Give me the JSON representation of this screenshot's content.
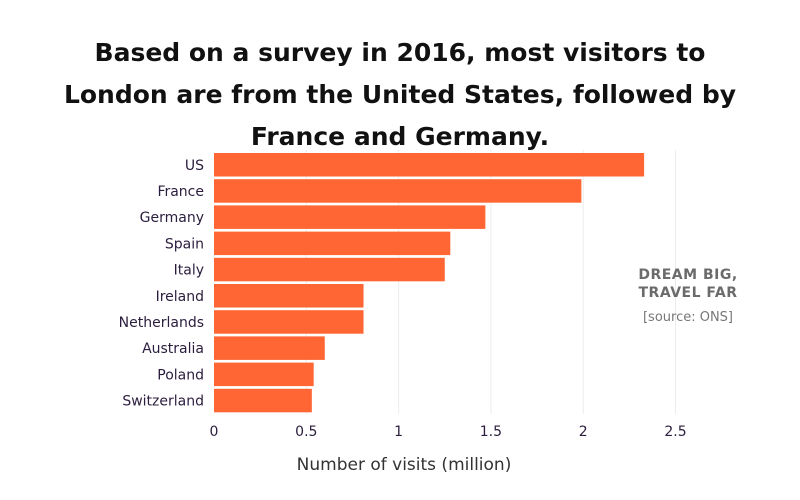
{
  "chart_data": {
    "type": "bar",
    "orientation": "horizontal",
    "title": "Based on a survey in 2016, most visitors to London are from the United States, followed by France and Germany.",
    "xlabel": "Number of visits (million)",
    "ylabel": "",
    "categories": [
      "US",
      "France",
      "Germany",
      "Spain",
      "Italy",
      "Ireland",
      "Netherlands",
      "Australia",
      "Poland",
      "Switzerland"
    ],
    "values": [
      2.33,
      1.99,
      1.47,
      1.28,
      1.25,
      0.81,
      0.81,
      0.6,
      0.54,
      0.53
    ],
    "xlim": [
      0,
      2.5
    ],
    "xticks": [
      "0",
      "0.5",
      "1",
      "1.5",
      "2",
      "2.5"
    ],
    "bar_color": "#ff6633",
    "grid": "vertical"
  },
  "watermark": {
    "line1": "DREAM BIG,",
    "line2": "TRAVEL FAR"
  },
  "source": "[source: ONS]"
}
